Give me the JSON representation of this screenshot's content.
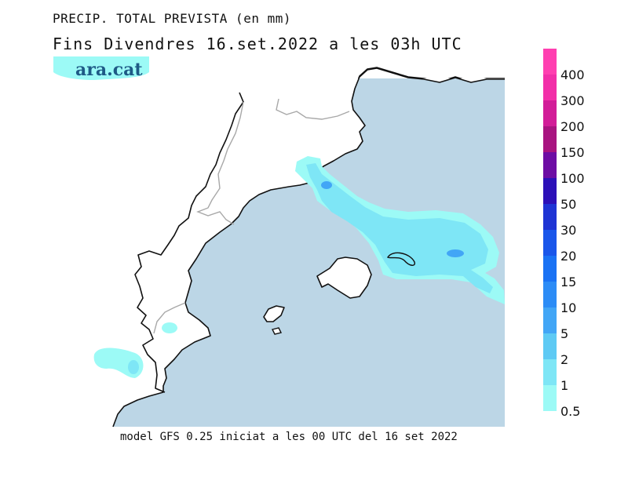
{
  "title": "PRECIP. TOTAL PREVISTA (en mm)",
  "subtitle": "Fins Divendres 16.set.2022 a les 03h UTC",
  "brand": "ara.cat",
  "footer": "model GFS 0.25 iniciat a les 00 UTC del 16 set 2022",
  "colors": {
    "sea": "#bcd6e6",
    "land": "#ffffff",
    "coast": "#111111",
    "border": "#a8a8a8"
  },
  "legend": [
    {
      "label": "400",
      "color": "#ff3fb0"
    },
    {
      "label": "300",
      "color": "#f22fa8"
    },
    {
      "label": "200",
      "color": "#d21d98"
    },
    {
      "label": "150",
      "color": "#a81480"
    },
    {
      "label": "100",
      "color": "#6d0da4"
    },
    {
      "label": "50",
      "color": "#2c10b8"
    },
    {
      "label": "30",
      "color": "#1e34d4"
    },
    {
      "label": "20",
      "color": "#1a56ea"
    },
    {
      "label": "15",
      "color": "#1a72f4"
    },
    {
      "label": "10",
      "color": "#2c8cf6"
    },
    {
      "label": "5",
      "color": "#42a6f6"
    },
    {
      "label": "2",
      "color": "#5ecaf4"
    },
    {
      "label": "1",
      "color": "#7ee6f6"
    },
    {
      "label": "0.5",
      "color": "#9cfaf6"
    }
  ]
}
